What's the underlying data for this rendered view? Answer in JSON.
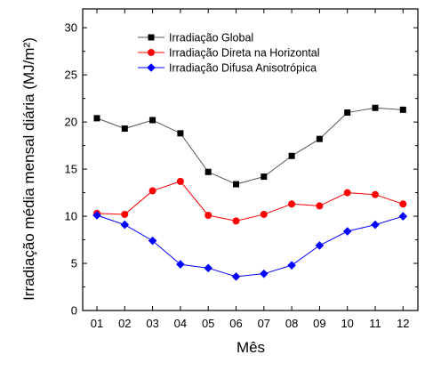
{
  "chart_data": {
    "type": "line",
    "title": "",
    "xlabel": "Mês",
    "ylabel": "Irradiação média mensal diária (MJ/m²)",
    "categories": [
      "01",
      "02",
      "03",
      "04",
      "05",
      "06",
      "07",
      "08",
      "09",
      "10",
      "11",
      "12"
    ],
    "ylim": [
      0,
      32
    ],
    "yticks": [
      0,
      5,
      10,
      15,
      20,
      25,
      30
    ],
    "grid": false,
    "legend_position": "top-left",
    "series": [
      {
        "name": "Irradiação Global",
        "color": "#000000",
        "line_color": "#555555",
        "marker": "square",
        "values": [
          20.4,
          19.3,
          20.2,
          18.8,
          14.7,
          13.4,
          14.2,
          16.4,
          18.2,
          21.0,
          21.5,
          21.3
        ]
      },
      {
        "name": "Irradiação Direta na Horizontal",
        "color": "#ff0000",
        "line_color": "#ff0000",
        "marker": "circle",
        "values": [
          10.3,
          10.2,
          12.7,
          13.7,
          10.1,
          9.5,
          10.2,
          11.3,
          11.1,
          12.5,
          12.3,
          11.3
        ]
      },
      {
        "name": "Irradiação Difusa Anisotrópica",
        "color": "#0000ff",
        "line_color": "#0000ff",
        "marker": "diamond",
        "values": [
          10.1,
          9.1,
          7.4,
          4.9,
          4.5,
          3.6,
          3.9,
          4.8,
          6.9,
          8.4,
          9.1,
          10.0
        ]
      }
    ]
  }
}
